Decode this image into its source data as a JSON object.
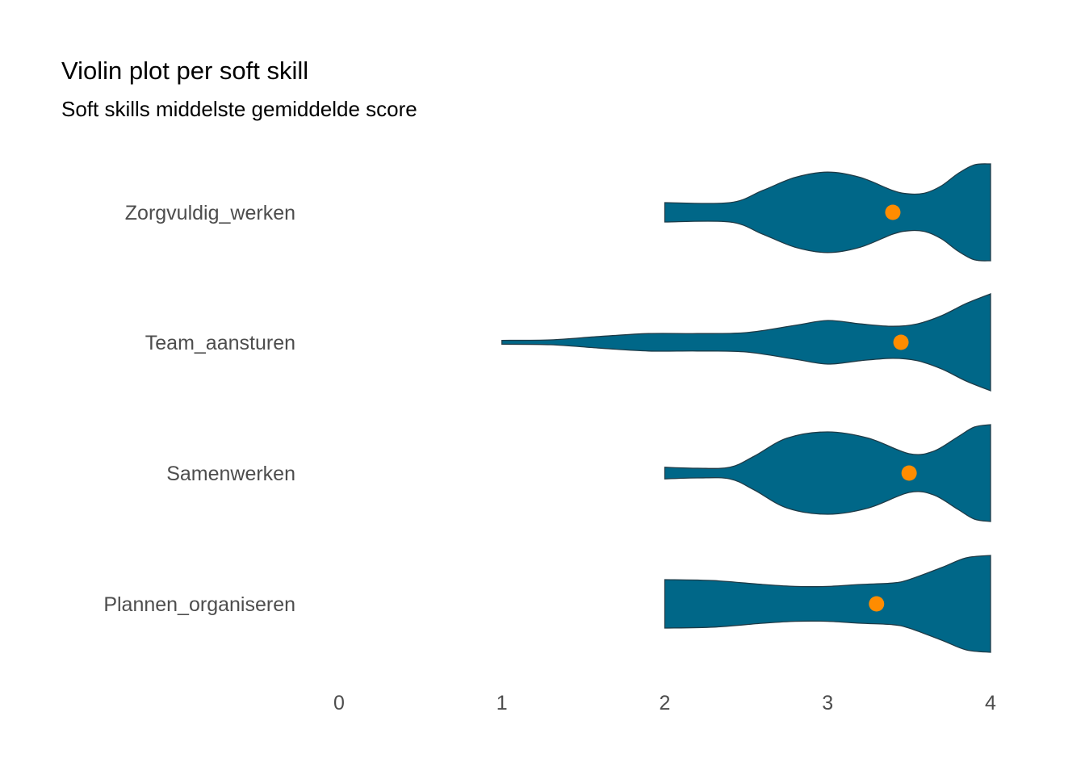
{
  "chart_data": {
    "type": "violin",
    "title": "Violin plot per soft skill",
    "subtitle": "Soft skills middelste gemiddelde score",
    "xlabel": "",
    "ylabel": "",
    "xlim": [
      0,
      4
    ],
    "xticks": [
      0,
      1,
      2,
      3,
      4
    ],
    "grid": false,
    "legend": "none",
    "colors": {
      "violin_fill": "#006788",
      "violin_stroke": "#1f3b47",
      "mean_point": "#ff8c00"
    },
    "categories": [
      "Zorgvuldig_werken",
      "Team_aansturen",
      "Samenwerken",
      "Plannen_organiseren"
    ],
    "series": [
      {
        "category": "Zorgvuldig_werken",
        "mean": 3.4,
        "density": [
          [
            2.0,
            0.2
          ],
          [
            2.4,
            0.2
          ],
          [
            2.6,
            0.45
          ],
          [
            2.8,
            0.72
          ],
          [
            3.0,
            0.83
          ],
          [
            3.2,
            0.72
          ],
          [
            3.4,
            0.45
          ],
          [
            3.5,
            0.38
          ],
          [
            3.6,
            0.4
          ],
          [
            3.7,
            0.55
          ],
          [
            3.8,
            0.8
          ],
          [
            3.9,
            0.98
          ],
          [
            4.0,
            1.0
          ]
        ]
      },
      {
        "category": "Team_aansturen",
        "mean": 3.45,
        "density": [
          [
            1.0,
            0.04
          ],
          [
            1.3,
            0.05
          ],
          [
            1.6,
            0.12
          ],
          [
            1.9,
            0.18
          ],
          [
            2.2,
            0.18
          ],
          [
            2.5,
            0.2
          ],
          [
            2.8,
            0.35
          ],
          [
            3.0,
            0.45
          ],
          [
            3.2,
            0.38
          ],
          [
            3.4,
            0.33
          ],
          [
            3.55,
            0.38
          ],
          [
            3.7,
            0.55
          ],
          [
            3.85,
            0.8
          ],
          [
            4.0,
            1.0
          ]
        ]
      },
      {
        "category": "Samenwerken",
        "mean": 3.5,
        "density": [
          [
            2.0,
            0.12
          ],
          [
            2.2,
            0.1
          ],
          [
            2.4,
            0.12
          ],
          [
            2.55,
            0.35
          ],
          [
            2.75,
            0.72
          ],
          [
            3.0,
            0.85
          ],
          [
            3.25,
            0.72
          ],
          [
            3.5,
            0.4
          ],
          [
            3.65,
            0.45
          ],
          [
            3.8,
            0.75
          ],
          [
            3.9,
            0.95
          ],
          [
            4.0,
            1.0
          ]
        ]
      },
      {
        "category": "Plannen_organiseren",
        "mean": 3.3,
        "density": [
          [
            2.0,
            0.5
          ],
          [
            2.3,
            0.48
          ],
          [
            2.6,
            0.4
          ],
          [
            2.8,
            0.36
          ],
          [
            3.0,
            0.36
          ],
          [
            3.2,
            0.4
          ],
          [
            3.4,
            0.43
          ],
          [
            3.5,
            0.5
          ],
          [
            3.7,
            0.75
          ],
          [
            3.85,
            0.95
          ],
          [
            4.0,
            1.0
          ]
        ]
      }
    ]
  }
}
